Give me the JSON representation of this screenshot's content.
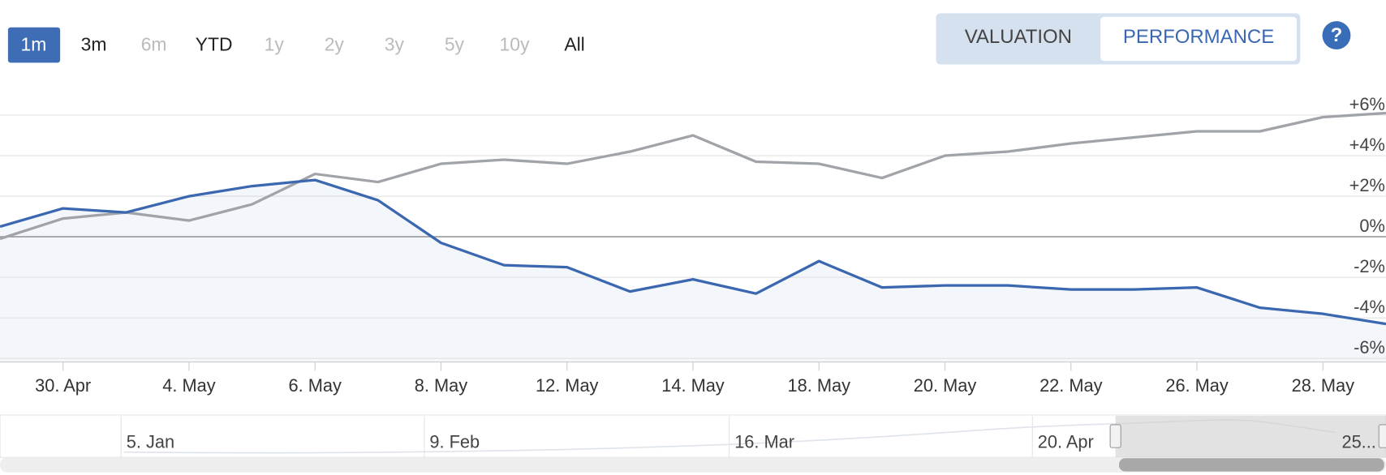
{
  "range_selector": {
    "buttons": [
      "1m",
      "3m",
      "6m",
      "YTD",
      "1y",
      "2y",
      "3y",
      "5y",
      "10y",
      "All"
    ],
    "selected": 0,
    "disabled": [
      2,
      4,
      5,
      6,
      7,
      8
    ]
  },
  "tabs": {
    "items": [
      "VALUATION",
      "PERFORMANCE"
    ],
    "active": 1
  },
  "help": "?",
  "chart_data": {
    "type": "line",
    "categories": [
      null,
      "30. Apr",
      null,
      "4. May",
      null,
      "6. May",
      null,
      "8. May",
      null,
      "12. May",
      null,
      "14. May",
      null,
      "18. May",
      null,
      "20. May",
      null,
      "22. May",
      null,
      "26. May",
      null,
      "28. May",
      null
    ],
    "series": [
      {
        "color": "#3a67b0",
        "area": true,
        "values": [
          0.5,
          1.4,
          1.2,
          2.0,
          2.5,
          2.8,
          1.8,
          -0.3,
          -1.4,
          -1.5,
          -2.7,
          -2.1,
          -2.8,
          -1.2,
          -2.5,
          -2.4,
          -2.4,
          -2.6,
          -2.6,
          -2.5,
          -3.5,
          -3.8,
          -4.3
        ]
      },
      {
        "color": "#a0a3a8",
        "values": [
          -0.1,
          0.9,
          1.2,
          0.8,
          1.6,
          3.1,
          2.7,
          3.6,
          3.8,
          3.6,
          4.2,
          5.0,
          3.7,
          3.6,
          2.9,
          4.0,
          4.2,
          4.6,
          4.9,
          5.2,
          5.2,
          5.9,
          6.1
        ]
      }
    ],
    "ylim": [
      -6,
      6.8
    ],
    "yticks": [
      {
        "value": 6,
        "label": "+6%"
      },
      {
        "value": 4,
        "label": "+4%"
      },
      {
        "value": 2,
        "label": "+2%"
      },
      {
        "value": 0,
        "label": "0%"
      },
      {
        "value": -2,
        "label": "-2%"
      },
      {
        "value": -4,
        "label": "-4%"
      },
      {
        "value": -6,
        "label": "-6%"
      }
    ],
    "grid": true
  },
  "navigator": {
    "labels": [
      "5. Jan",
      "9. Feb",
      "16. Mar",
      "20. Apr",
      "25..."
    ]
  }
}
